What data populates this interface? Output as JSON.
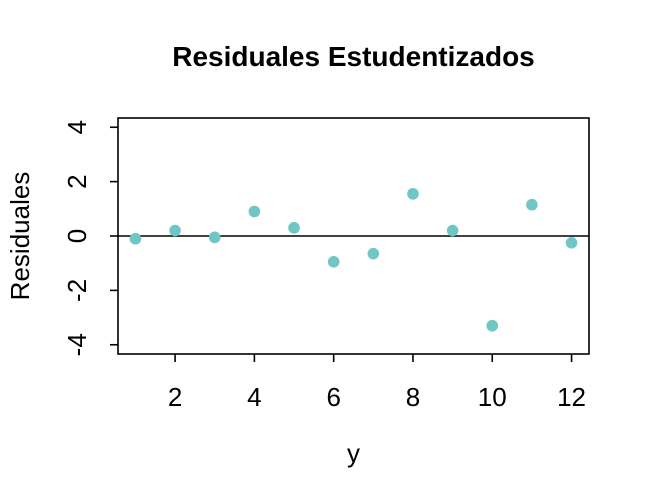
{
  "colors": {
    "point": "#70c6c4",
    "axis": "#000000",
    "background": "#ffffff"
  },
  "chart_data": {
    "type": "scatter",
    "title": "Residuales Estudentizados",
    "xlabel": "y",
    "ylabel": "Residuales",
    "x": [
      1,
      2,
      3,
      4,
      5,
      6,
      7,
      8,
      9,
      10,
      11,
      12
    ],
    "y": [
      -0.1,
      0.2,
      -0.05,
      0.9,
      0.3,
      -0.95,
      -0.65,
      1.55,
      0.2,
      -3.3,
      1.15,
      -0.25
    ],
    "xticks": [
      2,
      4,
      6,
      8,
      10,
      12
    ],
    "yticks": [
      -4,
      -2,
      0,
      2,
      4
    ],
    "xlim": [
      0.56,
      12.44
    ],
    "ylim": [
      -4.34,
      4.34
    ],
    "hline": 0,
    "grid": false,
    "legend": null,
    "marker": "filled-circle",
    "box": true
  }
}
